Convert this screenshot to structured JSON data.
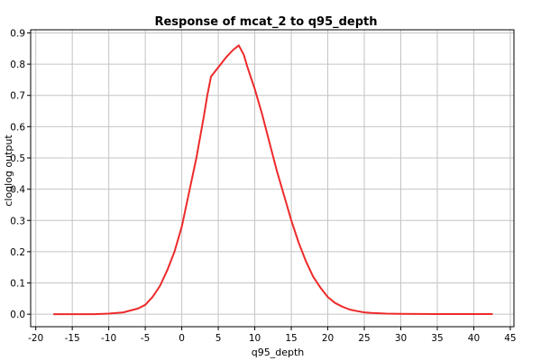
{
  "chart_data": {
    "type": "line",
    "title": "Response of mcat_2 to q95_depth",
    "xlabel": "q95_depth",
    "ylabel": "cloglog output",
    "xlim": [
      -20.7,
      45.5
    ],
    "ylim": [
      -0.04,
      0.91
    ],
    "x_ticks": [
      -20,
      -15,
      -10,
      -5,
      0,
      5,
      10,
      15,
      20,
      25,
      30,
      35,
      40,
      45
    ],
    "x_tick_labels": [
      "-20",
      "-15",
      "-10",
      "-5",
      "0",
      "5",
      "10",
      "15",
      "20",
      "25",
      "30",
      "35",
      "40",
      "45"
    ],
    "y_ticks": [
      0.0,
      0.1,
      0.2,
      0.3,
      0.4,
      0.5,
      0.6,
      0.7,
      0.8,
      0.9
    ],
    "y_tick_labels": [
      "0.0",
      "0.1",
      "0.2",
      "0.3",
      "0.4",
      "0.5",
      "0.6",
      "0.7",
      "0.8",
      "0.9"
    ],
    "grid": true,
    "series": [
      {
        "color": "#ee2a2a",
        "x": [
          -17.5,
          -15,
          -12,
          -10,
          -8,
          -6,
          -5,
          -4,
          -3,
          -2,
          -1,
          0,
          1,
          2,
          3,
          3.5,
          4,
          5,
          6,
          7,
          7.8,
          8.5,
          9,
          10,
          11,
          12,
          13,
          14,
          15,
          16,
          17,
          18,
          19,
          20,
          21,
          22,
          23,
          24,
          25,
          26,
          28,
          30,
          35,
          40,
          42.5
        ],
        "y": [
          0.0,
          0.0,
          0.0,
          0.002,
          0.006,
          0.018,
          0.03,
          0.055,
          0.09,
          0.14,
          0.2,
          0.28,
          0.39,
          0.5,
          0.63,
          0.7,
          0.76,
          0.79,
          0.82,
          0.845,
          0.86,
          0.83,
          0.79,
          0.72,
          0.64,
          0.55,
          0.46,
          0.38,
          0.3,
          0.23,
          0.17,
          0.12,
          0.085,
          0.055,
          0.036,
          0.024,
          0.015,
          0.01,
          0.006,
          0.004,
          0.002,
          0.001,
          0.0005,
          0.0003,
          0.0003
        ]
      }
    ]
  }
}
